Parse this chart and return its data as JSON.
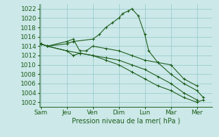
{
  "bg_color": "#cce8e8",
  "grid_color": "#99cccc",
  "line_color": "#1a5c1a",
  "xlabel": "Pression niveau de la mer( hPa )",
  "xtick_labels": [
    "Sam",
    "Jeu",
    "Ven",
    "Dim",
    "Lun",
    "Mar",
    "Mer"
  ],
  "xtick_positions": [
    0,
    2,
    4,
    6,
    8,
    10,
    12
  ],
  "ylim": [
    1001,
    1023
  ],
  "yticks": [
    1002,
    1004,
    1006,
    1008,
    1010,
    1012,
    1014,
    1016,
    1018,
    1020,
    1022
  ],
  "xlim": [
    -0.1,
    13.2
  ],
  "lines": [
    {
      "x": [
        0,
        0.5,
        2,
        2.5,
        4,
        4.5,
        5,
        5.5,
        6,
        6.3,
        6.7,
        7,
        7.5,
        8,
        8.3,
        9,
        10,
        11,
        12,
        12.5
      ],
      "y": [
        1014.5,
        1014,
        1014.5,
        1015,
        1015.5,
        1016.5,
        1018,
        1019,
        1020,
        1021,
        1021.5,
        1022,
        1020.5,
        1016.5,
        1013,
        1010.5,
        1008,
        1006,
        1004.5,
        1003
      ]
    },
    {
      "x": [
        0,
        0.5,
        2,
        2.5,
        3,
        3.5,
        4,
        5,
        6,
        7,
        8,
        9,
        10,
        11,
        12
      ],
      "y": [
        1014.5,
        1014,
        1015,
        1015.5,
        1013,
        1013,
        1014,
        1013.5,
        1013,
        1012,
        1011,
        1010.5,
        1010,
        1007,
        1005.5
      ]
    },
    {
      "x": [
        0,
        0.5,
        2,
        3,
        4,
        5,
        6,
        7,
        8,
        9,
        10,
        11,
        12
      ],
      "y": [
        1014.5,
        1014,
        1013,
        1012.5,
        1012,
        1011.5,
        1011,
        1010,
        1009,
        1007.5,
        1006,
        1004,
        1002.5
      ]
    },
    {
      "x": [
        0,
        0.5,
        2,
        2.5,
        3,
        4,
        5,
        6,
        7,
        8,
        9,
        10,
        11,
        12,
        12.5
      ],
      "y": [
        1014.5,
        1014,
        1013,
        1012,
        1012.5,
        1012,
        1011,
        1010,
        1008.5,
        1007,
        1005.5,
        1004.5,
        1003,
        1002,
        1002.5
      ]
    }
  ]
}
